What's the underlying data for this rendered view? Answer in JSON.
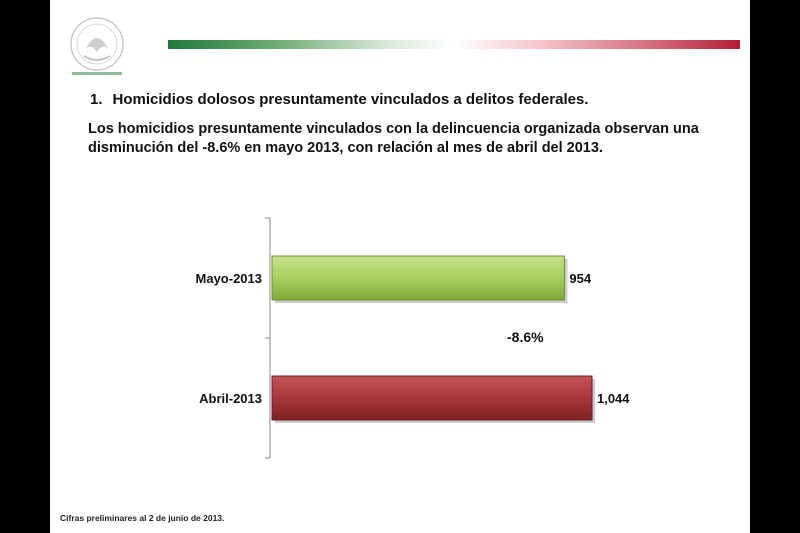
{
  "heading": {
    "number": "1.",
    "text": "Homicidios dolosos presuntamente vinculados a delitos federales."
  },
  "description": "Los homicidios presuntamente vinculados con la delincuencia organizada observan una disminución del -8.6% en mayo 2013, con relación al mes de abril del 2013.",
  "footnote": "Cifras preliminares al 2 de junio de 2013.",
  "colors": {
    "mayo_bar": "#a8cf5e",
    "abril_bar": "#a8363b",
    "flag_green": "#1f7a3a",
    "flag_red": "#b21f36"
  },
  "chart_data": {
    "type": "bar",
    "orientation": "horizontal",
    "categories": [
      "Mayo-2013",
      "Abril-2013"
    ],
    "values": [
      954,
      1044
    ],
    "value_labels": [
      "954",
      "1,044"
    ],
    "annotation": "-8.6%",
    "title": "",
    "xlabel": "",
    "ylabel": "",
    "xlim": [
      0,
      1100
    ],
    "grid": false
  }
}
